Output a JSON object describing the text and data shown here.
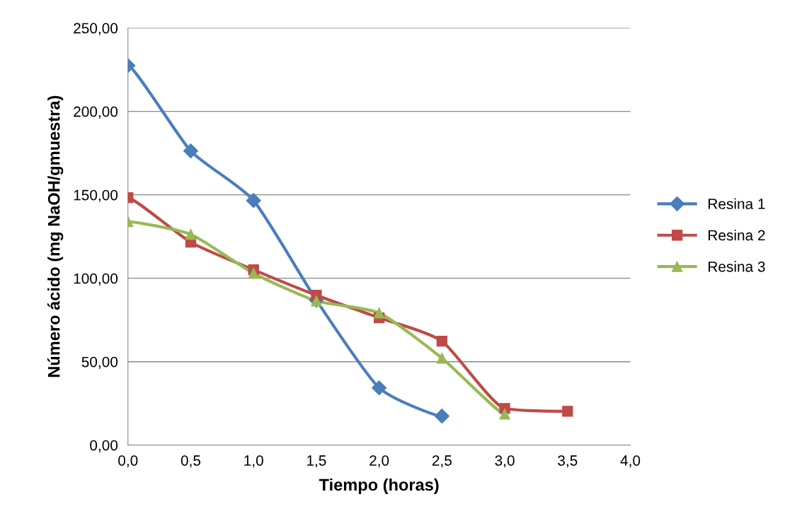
{
  "chart_data": {
    "type": "line",
    "xlabel": "Tiempo (horas)",
    "ylabel": "Número ácido (mg NaOH/gmuestra)",
    "x": [
      0,
      0.5,
      1.0,
      1.5,
      2.0,
      2.5,
      3.0,
      3.5
    ],
    "series": [
      {
        "name": "Resina 1",
        "color": "#4a7ebb",
        "marker": "diamond",
        "values": [
          227.5,
          176.3,
          146.6,
          86.9,
          34.3,
          17.4,
          null,
          null
        ]
      },
      {
        "name": "Resina 2",
        "color": "#be4b48",
        "marker": "square",
        "values": [
          148.3,
          121.6,
          105.1,
          89.8,
          76.3,
          62.3,
          22.0,
          20.3
        ]
      },
      {
        "name": "Resina 3",
        "color": "#98b954",
        "marker": "triangle",
        "values": [
          133.9,
          126.3,
          103.0,
          86.4,
          79.2,
          52.1,
          18.6,
          null
        ]
      }
    ],
    "xlim": [
      0,
      4.0
    ],
    "xticks": [
      {
        "value": 0,
        "label": "0,0"
      },
      {
        "value": 0.5,
        "label": "0,5"
      },
      {
        "value": 1.0,
        "label": "1,0"
      },
      {
        "value": 1.5,
        "label": "1,5"
      },
      {
        "value": 2.0,
        "label": "2,0"
      },
      {
        "value": 2.5,
        "label": "2,5"
      },
      {
        "value": 3.0,
        "label": "3,0"
      },
      {
        "value": 3.5,
        "label": "3,5"
      },
      {
        "value": 4.0,
        "label": "4,0"
      }
    ],
    "ylim": [
      0,
      250
    ],
    "yticks": [
      {
        "value": 0,
        "label": "0,00"
      },
      {
        "value": 50,
        "label": "50,00"
      },
      {
        "value": 100,
        "label": "100,00"
      },
      {
        "value": 150,
        "label": "150,00"
      },
      {
        "value": 200,
        "label": "200,00"
      },
      {
        "value": 250,
        "label": "250,00"
      }
    ],
    "grid": "y",
    "legend": "right",
    "line_style": "solid"
  }
}
